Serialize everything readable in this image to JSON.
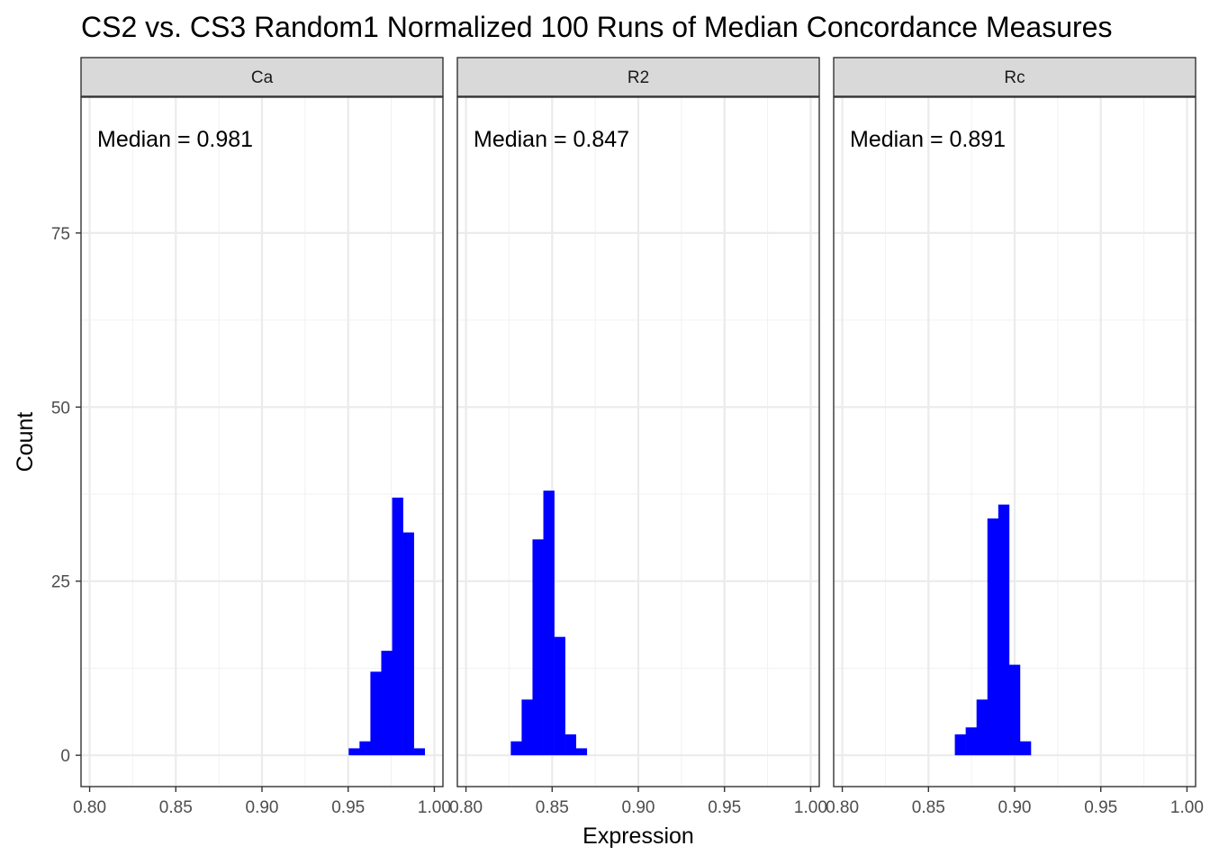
{
  "chart_data": {
    "type": "bar",
    "title": "CS2 vs. CS3 Random1 Normalized 100 Runs of Median Concordance Measures",
    "xlabel": "Expression",
    "ylabel": "Count",
    "xlim": [
      0.795,
      1.005
    ],
    "ylim": [
      -4.5,
      94.5
    ],
    "x_ticks": [
      0.8,
      0.85,
      0.9,
      0.95,
      1.0
    ],
    "x_tick_labels": [
      "0.80",
      "0.85",
      "0.90",
      "0.95",
      "1.00"
    ],
    "y_ticks": [
      0,
      25,
      50,
      75
    ],
    "y_tick_labels": [
      "0",
      "25",
      "50",
      "75"
    ],
    "bin_width": 0.0063,
    "grid": true,
    "bar_color": "#0000ff",
    "panels": [
      {
        "name": "Ca",
        "annotation": "Median = 0.981",
        "bins_start": [
          0.9503,
          0.9566,
          0.9629,
          0.9692,
          0.9755,
          0.9818,
          0.9881
        ],
        "counts": [
          1,
          2,
          12,
          15,
          37,
          32,
          1
        ]
      },
      {
        "name": "R2",
        "annotation": "Median = 0.847",
        "bins_start": [
          0.826,
          0.8323,
          0.8386,
          0.8449,
          0.8512,
          0.8575,
          0.8638
        ],
        "counts": [
          2,
          8,
          31,
          38,
          17,
          3,
          1
        ]
      },
      {
        "name": "Rc",
        "annotation": "Median = 0.891",
        "bins_start": [
          0.8653,
          0.8716,
          0.8779,
          0.8842,
          0.8905,
          0.8968,
          0.9031
        ],
        "counts": [
          3,
          4,
          8,
          34,
          36,
          13,
          2
        ]
      }
    ]
  }
}
